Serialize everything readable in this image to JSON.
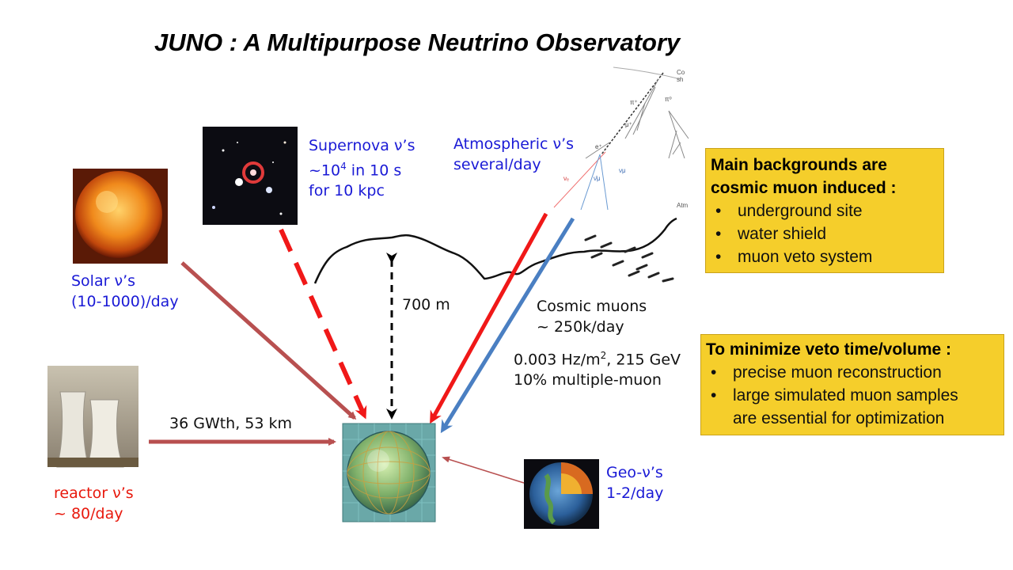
{
  "title": "JUNO : A Multipurpose Neutrino Observatory",
  "sources": {
    "supernova": [
      "Supernova ν’s",
      "~10",
      "4",
      " in 10 s",
      "for 10 kpc"
    ],
    "atmospheric": [
      "Atmospheric ν’s",
      "several/day"
    ],
    "solar": [
      "Solar ν’s",
      "(10-1000)/day"
    ],
    "reactor": [
      "reactor ν’s",
      "~ 80/day"
    ],
    "reactor_link": "36 GWth, 53 km",
    "geo": [
      "Geo-ν’s",
      "1-2/day"
    ]
  },
  "depth_label": "700 m",
  "cosmic": {
    "line1": "Cosmic muons",
    "line2": "~ 250k/day",
    "rate_prefix": "0.003 Hz/m",
    "rate_exp": "2",
    "rate_suffix": ", 215 GeV",
    "multi": "10% multiple-muon"
  },
  "shower_labels": {
    "cosmic_ray_shower": "Co",
    "shower_suffix": "sh",
    "pi_plus": "π⁺",
    "pi_zero": "π⁰",
    "mu_plus": "μ⁺",
    "e_plus": "e⁺",
    "nu_e": "νₑ",
    "nu_mu_1": "ν̄μ",
    "nu_mu_2": "νμ",
    "atm": "Atm"
  },
  "backgrounds_box": {
    "heading": [
      "Main backgrounds are",
      "cosmic muon induced :"
    ],
    "bullet": "•",
    "items": [
      "underground site",
      "water shield",
      "muon veto system"
    ]
  },
  "veto_box": {
    "heading": "To minimize veto time/volume :",
    "bullet": "•",
    "item1": "precise muon reconstruction",
    "item2_a": "large simulated muon samples",
    "item2_b": "are essential for optimization"
  },
  "colors": {
    "arrow_brown": "#b85050",
    "arrow_red": "#f01818",
    "arrow_blue": "#4a7fc2",
    "label_blue": "#1a1ad6",
    "label_red": "#e8190d",
    "box_yellow": "#f5ce2b"
  }
}
